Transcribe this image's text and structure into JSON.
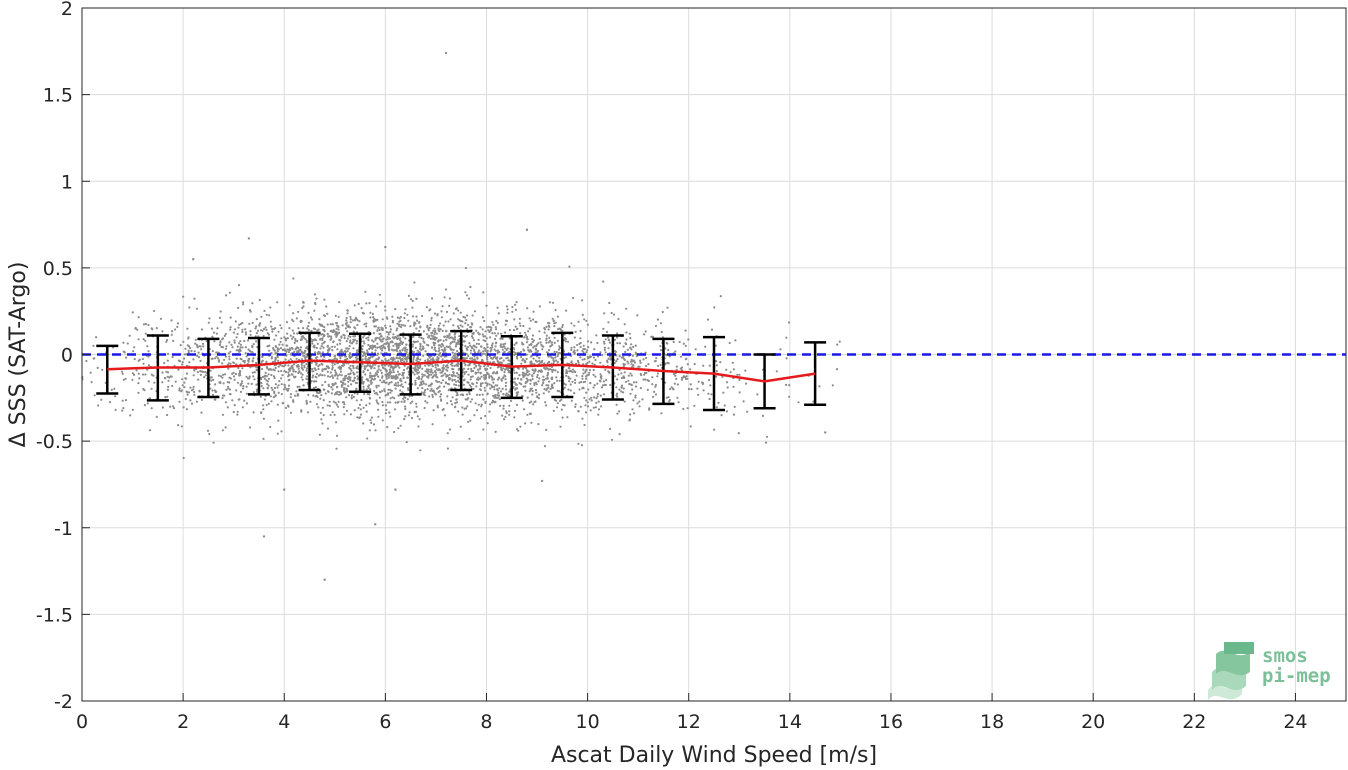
{
  "chart_data": {
    "type": "scatter",
    "title": "",
    "xlabel": "Ascat Daily Wind Speed [m/s]",
    "ylabel": "Δ SSS (SAT-Argo)",
    "xlim": [
      0,
      25
    ],
    "ylim": [
      -2,
      2
    ],
    "xticks": [
      0,
      2,
      4,
      6,
      8,
      10,
      12,
      14,
      16,
      18,
      20,
      22,
      24
    ],
    "yticks": [
      -2,
      -1.5,
      -1,
      -0.5,
      0,
      0.5,
      1,
      1.5,
      2
    ],
    "xtick_labels": [
      "0",
      "2",
      "4",
      "6",
      "8",
      "10",
      "12",
      "14",
      "16",
      "18",
      "20",
      "22",
      "24"
    ],
    "ytick_labels": [
      "-2",
      "-1.5",
      "-1",
      "-0.5",
      "0",
      "0.5",
      "1",
      "1.5",
      "2"
    ],
    "grid": true,
    "colors": {
      "scatter": "#8c8c8c",
      "mean_line": "#e41a1c",
      "zero_line": "#1a1ae6",
      "error_bars": "#000000",
      "grid": "#dcdcdc"
    },
    "binned_stats": {
      "x": [
        0.5,
        1.5,
        2.5,
        3.5,
        4.5,
        5.5,
        6.5,
        7.5,
        8.5,
        9.5,
        10.5,
        11.5,
        12.5,
        13.5,
        14.5
      ],
      "mean": [
        -0.085,
        -0.075,
        -0.075,
        -0.06,
        -0.035,
        -0.045,
        -0.055,
        -0.035,
        -0.07,
        -0.06,
        -0.075,
        -0.095,
        -0.11,
        -0.155,
        -0.11
      ],
      "lower": [
        -0.225,
        -0.265,
        -0.245,
        -0.23,
        -0.205,
        -0.215,
        -0.23,
        -0.205,
        -0.25,
        -0.245,
        -0.26,
        -0.285,
        -0.32,
        -0.31,
        -0.29
      ],
      "upper": [
        0.05,
        0.11,
        0.09,
        0.095,
        0.125,
        0.12,
        0.115,
        0.135,
        0.105,
        0.125,
        0.11,
        0.09,
        0.1,
        0.0,
        0.07
      ]
    },
    "reference_line": {
      "y": 0,
      "style": "dashed"
    },
    "scatter_distribution": {
      "bins_x": [
        0.5,
        1.5,
        2.5,
        3.5,
        4.5,
        5.5,
        6.5,
        7.5,
        8.5,
        9.5,
        10.5,
        11.5,
        12.5,
        13.5,
        14.5
      ],
      "relative_counts": [
        40,
        120,
        200,
        320,
        450,
        560,
        600,
        560,
        460,
        330,
        220,
        130,
        60,
        20,
        8
      ],
      "spread_sd": 0.15
    },
    "outliers": [
      [
        7.2,
        1.74
      ],
      [
        8.8,
        0.72
      ],
      [
        3.3,
        0.67
      ],
      [
        3.6,
        -1.05
      ],
      [
        4.8,
        -1.3
      ],
      [
        5.8,
        -0.98
      ],
      [
        4.0,
        -0.78
      ],
      [
        6.2,
        -0.78
      ],
      [
        9.1,
        -0.73
      ],
      [
        14.7,
        -0.45
      ],
      [
        6.0,
        0.62
      ],
      [
        2.2,
        0.55
      ]
    ]
  },
  "watermark": {
    "line1": "smos",
    "line2": "pi-mep"
  }
}
